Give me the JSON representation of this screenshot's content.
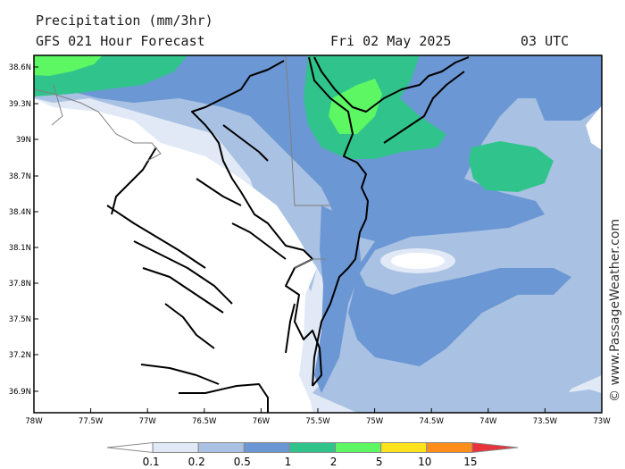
{
  "header": {
    "title": "Precipitation (mm/3hr)",
    "subtitle": "GFS 021 Hour Forecast",
    "date": "Fri 02 May 2025",
    "time": "03 UTC"
  },
  "credit": "© www.PassageWeather.com",
  "map": {
    "lat_labels": [
      "38.6N",
      "39.3N",
      "39N",
      "38.7N",
      "38.4N",
      "38.1N",
      "37.8N",
      "37.5N",
      "37.2N",
      "36.9N"
    ],
    "lon_labels": [
      "78W",
      "77.5W",
      "77W",
      "76.5W",
      "76W",
      "75.5W",
      "75W",
      "74.5W",
      "74W",
      "73.5W",
      "73W"
    ]
  },
  "legend": {
    "labels": [
      "0.1",
      "0.2",
      "0.5",
      "1",
      "2",
      "5",
      "10",
      "15"
    ],
    "colors": [
      "#ffffff",
      "#e1e9f6",
      "#a9c1e2",
      "#6b97d4",
      "#30c48c",
      "#5cf763",
      "#ffe21c",
      "#ff8d1a",
      "#e8333a"
    ]
  },
  "colors": {
    "white": "#ffffff",
    "light": "#e1e9f6",
    "pale": "#a9c1e2",
    "blue": "#6b97d4",
    "teal": "#30c48c",
    "green": "#5cf763"
  }
}
